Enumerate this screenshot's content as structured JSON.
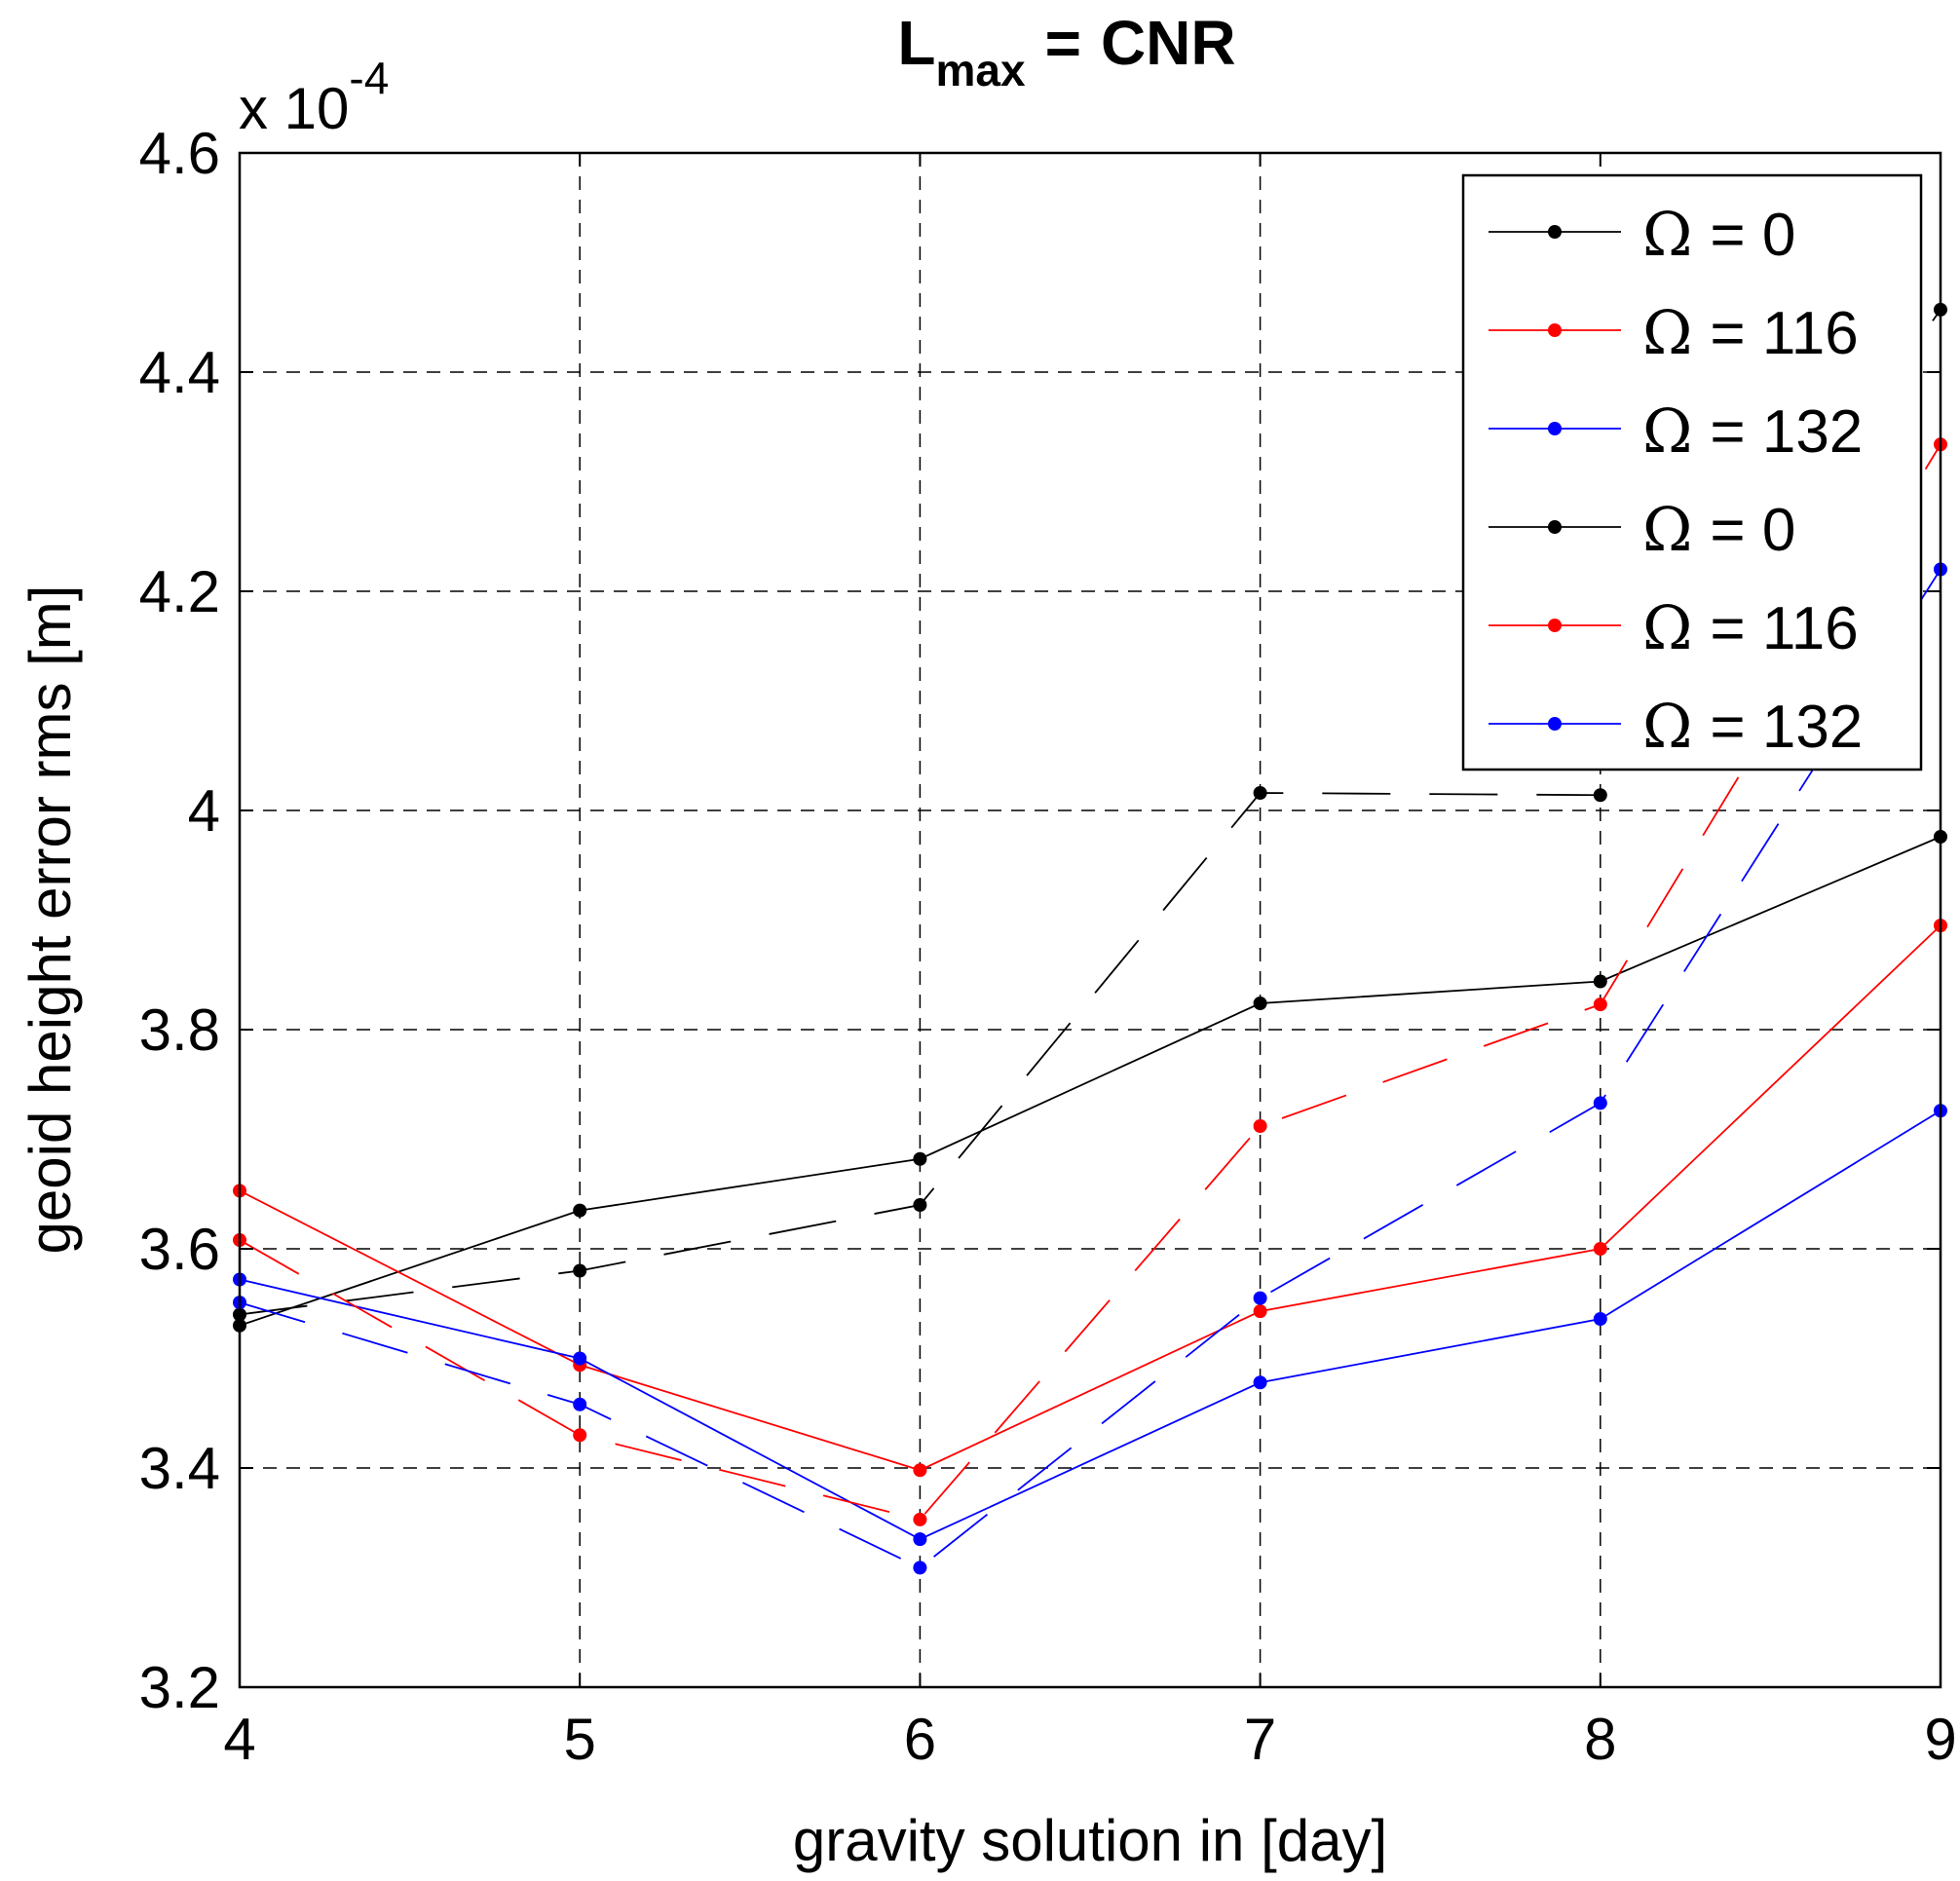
{
  "chart_data": {
    "type": "line",
    "title": "CNR",
    "title_prefix": "L",
    "title_subscript": "max",
    "title_equals": "=",
    "xlabel": "gravity solution in [day]",
    "ylabel": "geoid height error rms [m]",
    "y_scale_label": "x 10",
    "y_scale_exponent": "-4",
    "x": [
      4,
      5,
      6,
      7,
      8,
      9
    ],
    "xlim": [
      4,
      9
    ],
    "ylim": [
      3.2,
      4.6
    ],
    "x_ticks": [
      "4",
      "5",
      "6",
      "7",
      "8",
      "9"
    ],
    "y_ticks": [
      {
        "value": 3.2,
        "label": "3.2"
      },
      {
        "value": 3.4,
        "label": "3.4"
      },
      {
        "value": 3.6,
        "label": "3.6"
      },
      {
        "value": 3.8,
        "label": "3.8"
      },
      {
        "value": 4.0,
        "label": "4"
      },
      {
        "value": 4.2,
        "label": "4.2"
      },
      {
        "value": 4.4,
        "label": "4.4"
      },
      {
        "value": 4.6,
        "label": "4.6"
      }
    ],
    "grid": true,
    "legend_position": "top-right",
    "series": [
      {
        "name": "Ω = 0",
        "symbol": "Ω",
        "label_value": "= 0",
        "color": "#000000",
        "style": "solid",
        "values": [
          3.53,
          3.635,
          3.682,
          3.824,
          3.844,
          3.976
        ]
      },
      {
        "name": "Ω = 116",
        "symbol": "Ω",
        "label_value": "= 116",
        "color": "#ff0000",
        "style": "solid",
        "values": [
          3.653,
          3.494,
          3.398,
          3.543,
          3.6,
          3.895
        ]
      },
      {
        "name": "Ω = 132",
        "symbol": "Ω",
        "label_value": "= 132",
        "color": "#0000ff",
        "style": "solid",
        "values": [
          3.572,
          3.5,
          3.335,
          3.478,
          3.536,
          3.726
        ]
      },
      {
        "name": "Ω = 0",
        "symbol": "Ω",
        "label_value": "= 0",
        "color": "#000000",
        "style": "dashed",
        "values": [
          3.54,
          3.58,
          3.64,
          4.016,
          4.014,
          4.457
        ]
      },
      {
        "name": "Ω = 116",
        "symbol": "Ω",
        "label_value": "= 116",
        "color": "#ff0000",
        "style": "dashed",
        "values": [
          3.608,
          3.43,
          3.353,
          3.712,
          3.823,
          4.334
        ]
      },
      {
        "name": "Ω = 132",
        "symbol": "Ω",
        "label_value": "= 132",
        "color": "#0000ff",
        "style": "dashed",
        "values": [
          3.551,
          3.458,
          3.309,
          3.555,
          3.733,
          4.22
        ]
      }
    ]
  }
}
